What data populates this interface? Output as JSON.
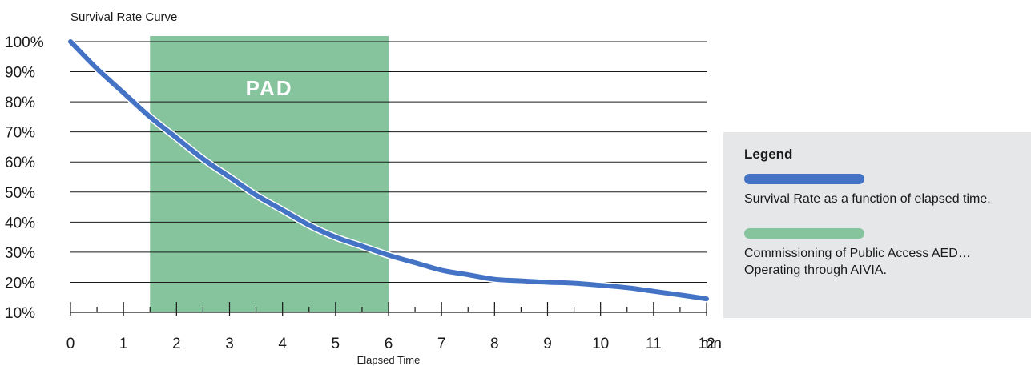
{
  "chart_data": {
    "type": "line",
    "title": "Survival Rate Curve",
    "xlabel": "Elapsed Time",
    "x_unit": "mn",
    "x_ticks": [
      0,
      1,
      2,
      3,
      4,
      5,
      6,
      7,
      8,
      9,
      10,
      11,
      12
    ],
    "y_ticks": [
      "100%",
      "90%",
      "80%",
      "70%",
      "60%",
      "50%",
      "40%",
      "30%",
      "20%",
      "10%"
    ],
    "xlim": [
      0,
      12
    ],
    "ylim": [
      10,
      100
    ],
    "grid": "horizontal",
    "series": [
      {
        "name": "Survival Rate as a function of elapsed time.",
        "color": "#4472c4",
        "x": [
          0,
          0.5,
          1,
          1.5,
          2,
          2.5,
          3,
          3.5,
          4,
          4.5,
          5,
          5.5,
          6,
          6.5,
          7,
          7.5,
          8,
          8.5,
          9,
          9.5,
          10,
          10.5,
          11,
          11.5,
          12
        ],
        "y": [
          100,
          91,
          83,
          75,
          68,
          61,
          55,
          49,
          44,
          39,
          35,
          32,
          29,
          26.5,
          24,
          22.5,
          21,
          20.5,
          20,
          19.7,
          19,
          18.2,
          17,
          15.8,
          14.5
        ]
      }
    ],
    "band": {
      "label": "PAD",
      "x_start": 1.5,
      "x_end": 6,
      "color": "#85c49d"
    }
  },
  "legend": {
    "title": "Legend",
    "items": [
      {
        "color": "#4472c4",
        "text": "Survival Rate as a function of elapsed time."
      },
      {
        "color": "#85c49d",
        "text": "Commissioning of Public Access AED…\nOperating through AIVIA."
      }
    ]
  }
}
